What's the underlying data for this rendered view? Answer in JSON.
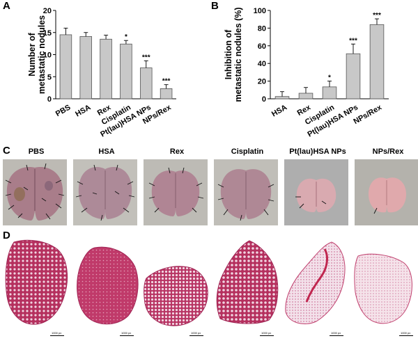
{
  "panels": {
    "a": "A",
    "b": "B",
    "c": "C",
    "d": "D"
  },
  "chart_data": [
    {
      "type": "bar",
      "categories": [
        "PBS",
        "HSA",
        "Rex",
        "Cisplatin",
        "Pt(lau)HSA NPs",
        "NPs/Rex"
      ],
      "values": [
        14.5,
        14.1,
        13.5,
        12.4,
        7.0,
        2.3
      ],
      "errors": [
        1.5,
        0.9,
        0.9,
        0.8,
        1.6,
        0.9
      ],
      "significance": [
        "",
        "",
        "",
        "*",
        "***",
        "***"
      ],
      "ylabel": "Number of metastatic nodules",
      "ylabel_lines": [
        "Number of",
        "metastatic nodules"
      ],
      "ylim": [
        0,
        20
      ],
      "yticks": [
        0,
        5,
        10,
        15,
        20
      ],
      "grid": false,
      "bar_color": "#c8c8c8"
    },
    {
      "type": "bar",
      "categories": [
        "HSA",
        "Rex",
        "Cisplatin",
        "Pt(lau)HSA NPs",
        "NPs/Rex"
      ],
      "values": [
        2.6,
        6.3,
        13.5,
        51.0,
        84.0
      ],
      "errors": [
        5.5,
        6.5,
        6.5,
        11.0,
        6.5
      ],
      "significance": [
        "",
        "",
        "*",
        "***",
        "***"
      ],
      "ylabel": "Inhibition of metastatic nodules (%)",
      "ylabel_lines": [
        "Inhibition of",
        "metastatic nodules (%)"
      ],
      "ylim": [
        0,
        100
      ],
      "yticks": [
        0,
        20,
        40,
        60,
        80,
        100
      ],
      "grid": false,
      "bar_color": "#c8c8c8"
    }
  ],
  "photos": {
    "labels": [
      "PBS",
      "HSA",
      "Rex",
      "Cisplatin",
      "Pt(lau)HSA NPs",
      "NPs/Rex"
    ]
  },
  "histology": {
    "scale_labels": [
      "1000 px",
      "1000 px",
      "1000 px",
      "1000 px",
      "1000 px",
      "1000 px"
    ]
  },
  "colors": {
    "lung": "#b98a98",
    "lung_dark": "#8d5f6c",
    "photo_bg": "#b6b4ae",
    "tissue": "#b5305e",
    "tissue_light": "#f0d3e0"
  }
}
